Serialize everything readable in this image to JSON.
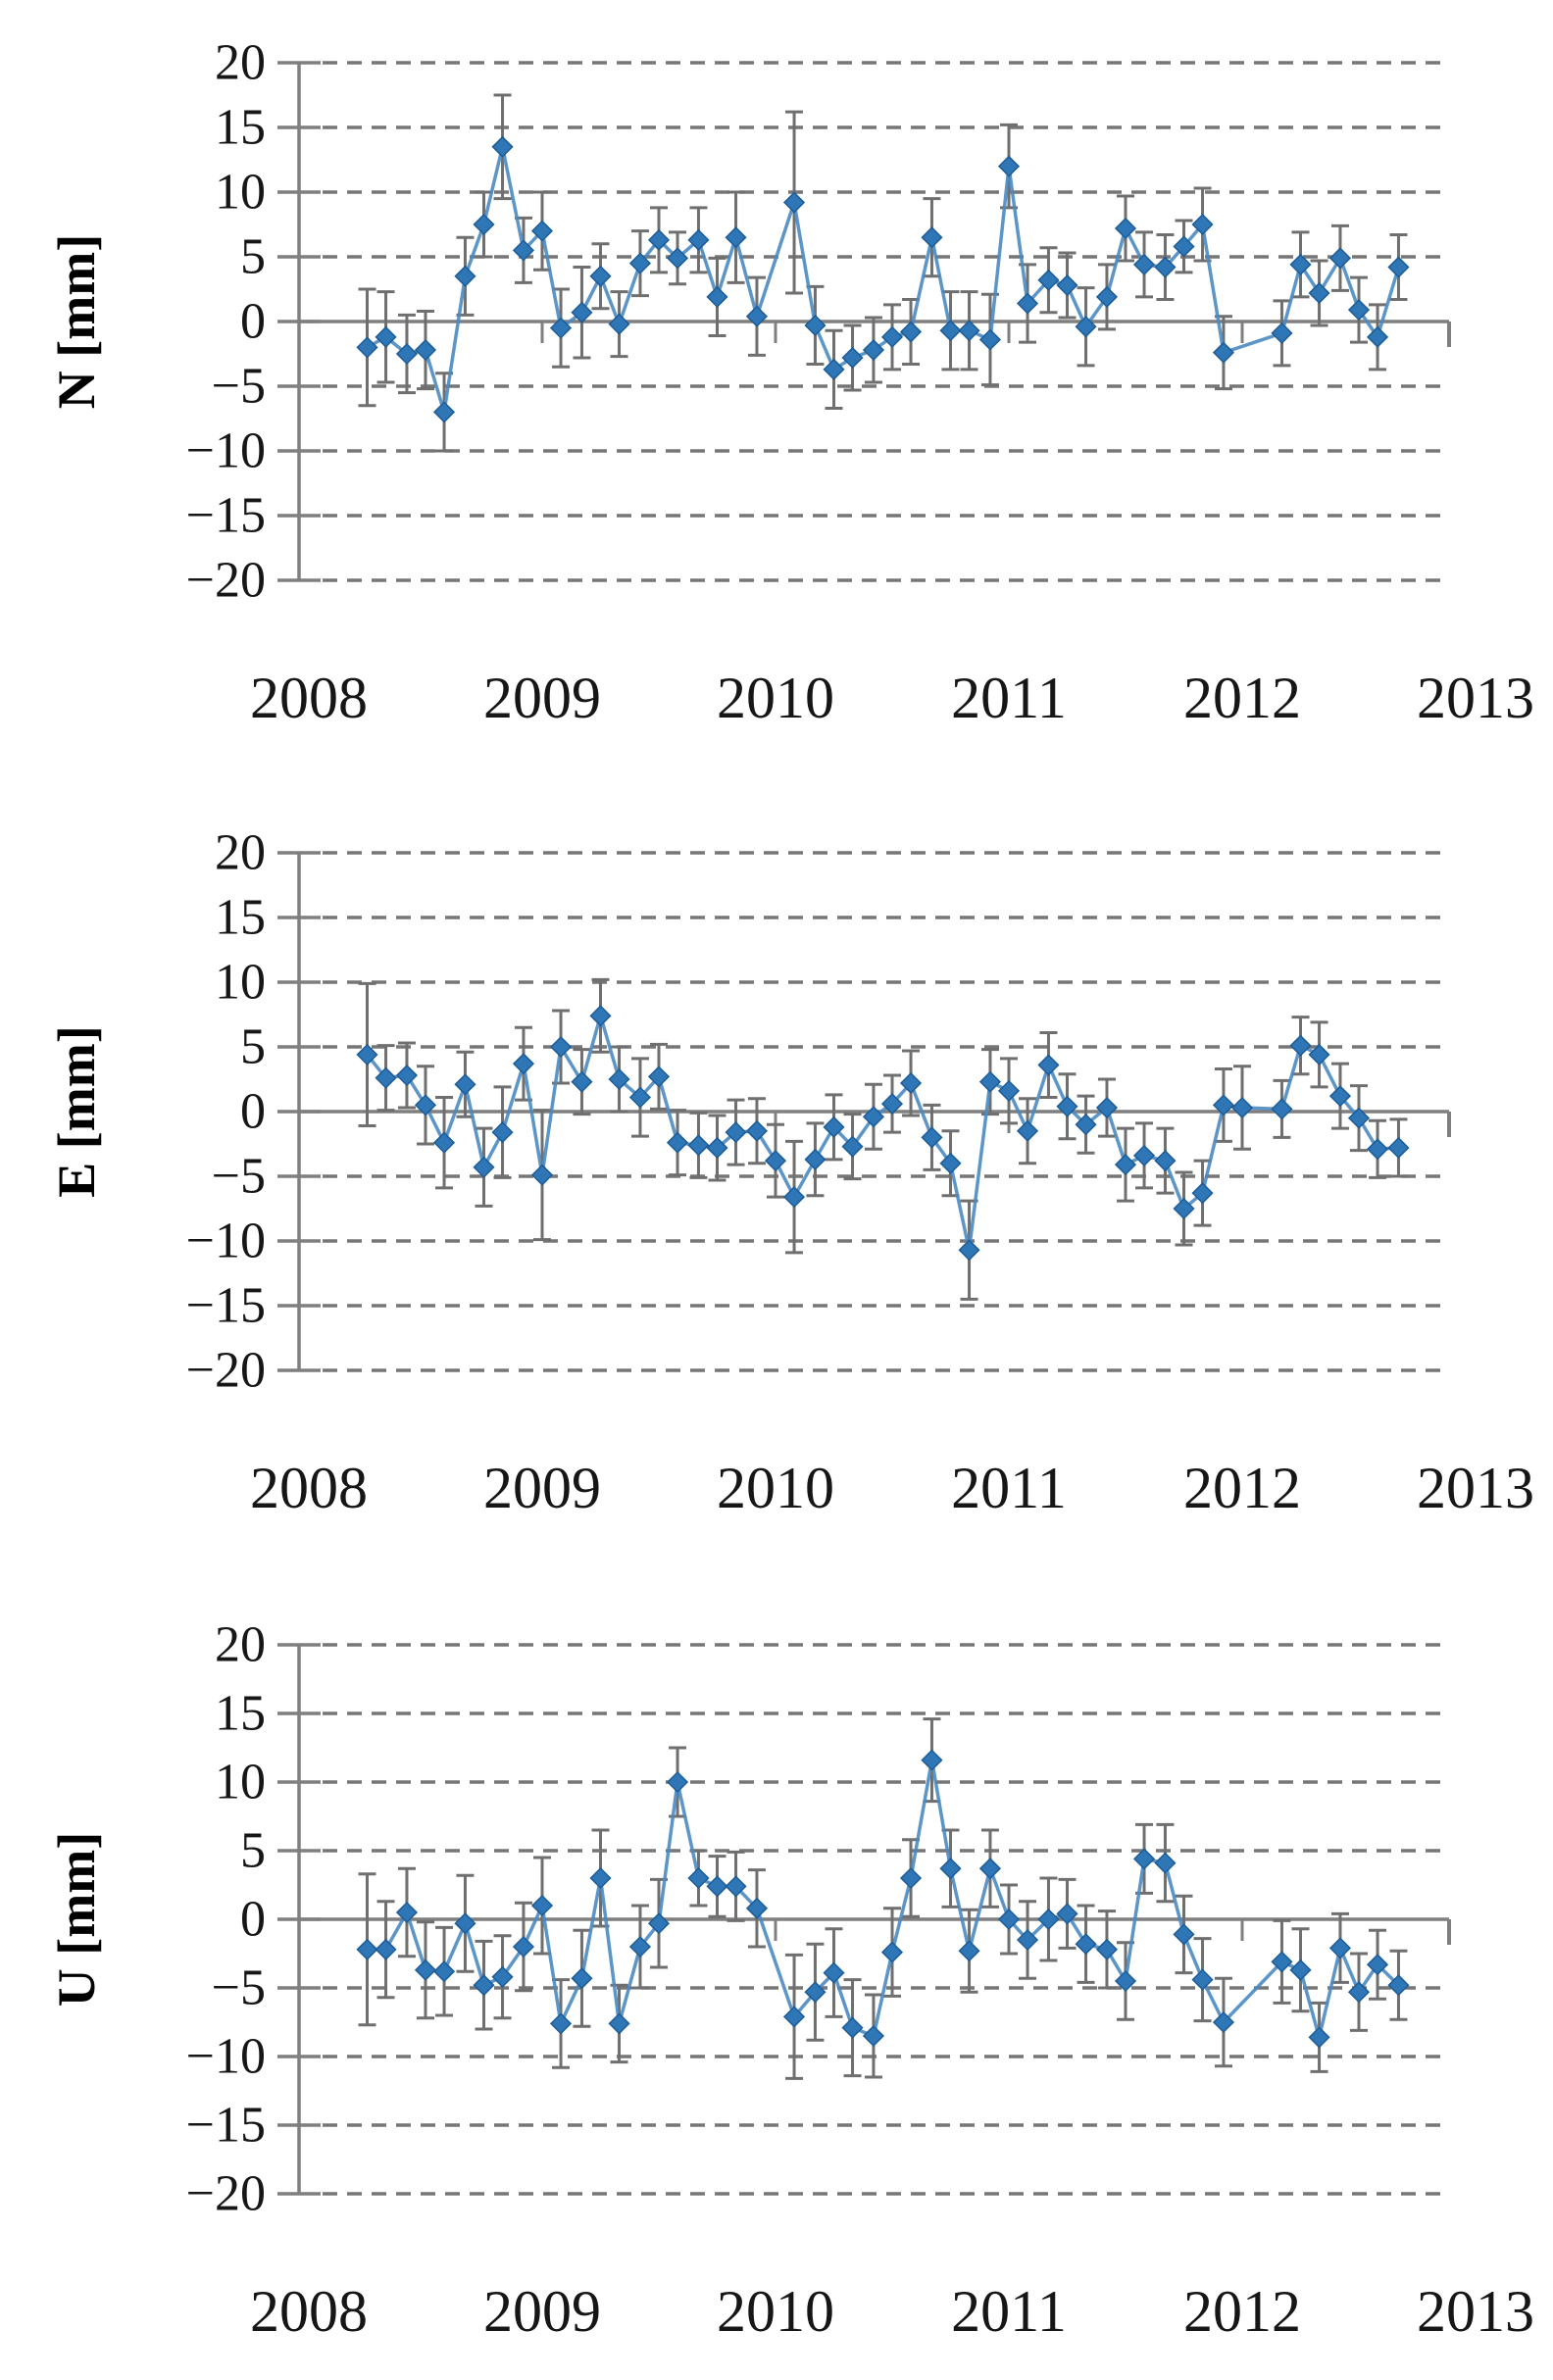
{
  "page": {
    "background": "#ffffff",
    "marker_color": "#2e76b6",
    "marker_edge_color": "#1d5c96",
    "line_color": "#4a8ac2",
    "errorbar_color": "#6f6f6f",
    "grid_color": "#767676",
    "zero_line_color": "#7f7f7f",
    "axis_color": "#7f7f7f",
    "tick_label_color": "#161616",
    "axis_title_color": "#000000"
  },
  "chart_data": [
    {
      "type": "line",
      "id": "n",
      "title": "",
      "xlabel": "",
      "ylabel": "N [mm]",
      "xlim": [
        2008,
        2013
      ],
      "ylim": [
        -20,
        20
      ],
      "x_ticks": [
        2008,
        2009,
        2010,
        2011,
        2012,
        2013
      ],
      "y_ticks": [
        20,
        15,
        10,
        5,
        0,
        -5,
        -10,
        -15,
        -20
      ],
      "grid": "horizontal-dashed",
      "legend": "none",
      "marker": "diamond",
      "error_bars": true,
      "x": [
        2008.25,
        2008.33,
        2008.42,
        2008.5,
        2008.58,
        2008.67,
        2008.75,
        2008.83,
        2008.92,
        2009.0,
        2009.08,
        2009.17,
        2009.25,
        2009.33,
        2009.42,
        2009.5,
        2009.58,
        2009.67,
        2009.75,
        2009.83,
        2009.92,
        2010.08,
        2010.17,
        2010.25,
        2010.33,
        2010.42,
        2010.5,
        2010.58,
        2010.67,
        2010.75,
        2010.83,
        2010.92,
        2011.0,
        2011.08,
        2011.17,
        2011.25,
        2011.33,
        2011.42,
        2011.5,
        2011.58,
        2011.67,
        2011.75,
        2011.83,
        2011.92,
        2012.17,
        2012.25,
        2012.33,
        2012.42,
        2012.5,
        2012.58,
        2012.67
      ],
      "values": [
        -2.0,
        -1.2,
        -2.5,
        -2.2,
        -7.0,
        3.5,
        7.5,
        13.5,
        5.5,
        7.0,
        -0.5,
        0.7,
        3.5,
        -0.2,
        4.5,
        6.3,
        4.9,
        6.3,
        1.9,
        6.5,
        0.4,
        9.2,
        -0.3,
        -3.7,
        -2.8,
        -2.2,
        -1.2,
        -0.8,
        6.5,
        -0.7,
        -0.7,
        -1.4,
        12.0,
        1.4,
        3.2,
        2.8,
        -0.4,
        1.9,
        7.2,
        4.4,
        4.2,
        5.8,
        7.5,
        -2.4,
        -0.9,
        4.4,
        2.2,
        4.9,
        0.9,
        -1.2,
        4.2
      ],
      "errors": [
        4.5,
        3.5,
        3.0,
        3.0,
        3.0,
        3.0,
        2.5,
        4.0,
        2.5,
        3.0,
        3.0,
        3.5,
        2.5,
        2.5,
        2.5,
        2.5,
        2.0,
        2.5,
        3.0,
        3.5,
        3.0,
        7.0,
        3.0,
        3.0,
        2.5,
        2.5,
        2.5,
        2.5,
        3.0,
        3.0,
        3.0,
        3.5,
        3.2,
        3.0,
        2.5,
        2.5,
        3.0,
        2.5,
        2.5,
        2.5,
        2.5,
        2.0,
        2.8,
        2.8,
        2.5,
        2.5,
        2.5,
        2.5,
        2.5,
        2.5,
        2.5
      ]
    },
    {
      "type": "line",
      "id": "e",
      "title": "",
      "xlabel": "",
      "ylabel": "E [mm]",
      "xlim": [
        2008,
        2013
      ],
      "ylim": [
        -20,
        20
      ],
      "x_ticks": [
        2008,
        2009,
        2010,
        2011,
        2012,
        2013
      ],
      "y_ticks": [
        20,
        15,
        10,
        5,
        0,
        -5,
        -10,
        -15,
        -20
      ],
      "grid": "horizontal-dashed",
      "legend": "none",
      "marker": "diamond",
      "error_bars": true,
      "x": [
        2008.25,
        2008.33,
        2008.42,
        2008.5,
        2008.58,
        2008.67,
        2008.75,
        2008.83,
        2008.92,
        2009.0,
        2009.08,
        2009.17,
        2009.25,
        2009.33,
        2009.42,
        2009.5,
        2009.58,
        2009.67,
        2009.75,
        2009.83,
        2009.92,
        2010.0,
        2010.08,
        2010.17,
        2010.25,
        2010.33,
        2010.42,
        2010.5,
        2010.58,
        2010.67,
        2010.75,
        2010.83,
        2010.92,
        2011.0,
        2011.08,
        2011.17,
        2011.25,
        2011.33,
        2011.42,
        2011.5,
        2011.58,
        2011.67,
        2011.75,
        2011.83,
        2011.92,
        2012.0,
        2012.17,
        2012.25,
        2012.33,
        2012.42,
        2012.5,
        2012.58,
        2012.67
      ],
      "values": [
        4.4,
        2.6,
        2.8,
        0.5,
        -2.4,
        2.1,
        -4.3,
        -1.6,
        3.7,
        -4.9,
        5.0,
        2.3,
        7.4,
        2.5,
        1.1,
        2.7,
        -2.4,
        -2.6,
        -2.8,
        -1.6,
        -1.5,
        -3.8,
        -6.6,
        -3.7,
        -1.2,
        -2.7,
        -0.4,
        0.6,
        2.2,
        -2.0,
        -4.0,
        -10.7,
        2.3,
        1.6,
        -1.5,
        3.6,
        0.4,
        -1.0,
        0.3,
        -4.1,
        -3.4,
        -3.8,
        -7.5,
        -6.3,
        0.5,
        0.3,
        0.2,
        5.1,
        4.4,
        1.2,
        -0.5,
        -2.9,
        -2.8
      ],
      "errors": [
        5.5,
        2.5,
        2.5,
        3.0,
        3.5,
        2.5,
        3.0,
        3.5,
        2.8,
        5.0,
        2.8,
        2.5,
        2.8,
        2.5,
        3.0,
        2.5,
        2.5,
        2.5,
        2.5,
        2.5,
        2.5,
        2.8,
        4.3,
        2.8,
        2.5,
        2.5,
        2.5,
        2.2,
        2.5,
        2.5,
        2.5,
        3.8,
        2.5,
        2.5,
        2.5,
        2.5,
        2.5,
        2.2,
        2.2,
        2.8,
        2.5,
        2.5,
        2.8,
        2.5,
        2.8,
        3.2,
        2.2,
        2.2,
        2.5,
        2.5,
        2.5,
        2.2,
        2.2
      ]
    },
    {
      "type": "line",
      "id": "u",
      "title": "",
      "xlabel": "",
      "ylabel": "U [mm]",
      "xlim": [
        2008,
        2013
      ],
      "ylim": [
        -20,
        20
      ],
      "x_ticks": [
        2008,
        2009,
        2010,
        2011,
        2012,
        2013
      ],
      "y_ticks": [
        20,
        15,
        10,
        5,
        0,
        -5,
        -10,
        -15,
        -20
      ],
      "grid": "horizontal-dashed",
      "legend": "none",
      "marker": "diamond",
      "error_bars": true,
      "x": [
        2008.25,
        2008.33,
        2008.42,
        2008.5,
        2008.58,
        2008.67,
        2008.75,
        2008.83,
        2008.92,
        2009.0,
        2009.08,
        2009.17,
        2009.25,
        2009.33,
        2009.42,
        2009.5,
        2009.58,
        2009.67,
        2009.75,
        2009.83,
        2009.92,
        2010.08,
        2010.17,
        2010.25,
        2010.33,
        2010.42,
        2010.5,
        2010.58,
        2010.67,
        2010.75,
        2010.83,
        2010.92,
        2011.0,
        2011.08,
        2011.17,
        2011.25,
        2011.33,
        2011.42,
        2011.5,
        2011.58,
        2011.67,
        2011.75,
        2011.83,
        2011.92,
        2012.17,
        2012.25,
        2012.33,
        2012.42,
        2012.5,
        2012.58,
        2012.67
      ],
      "values": [
        -2.2,
        -2.2,
        0.5,
        -3.7,
        -3.8,
        -0.3,
        -4.8,
        -4.2,
        -2.0,
        1.0,
        -7.6,
        -4.3,
        3.0,
        -7.6,
        -2.0,
        -0.3,
        10.0,
        3.0,
        2.4,
        2.4,
        0.8,
        -7.1,
        -5.3,
        -3.9,
        -7.9,
        -8.5,
        -2.4,
        3.0,
        11.6,
        3.7,
        -2.3,
        3.7,
        0.0,
        -1.5,
        0.0,
        0.4,
        -1.8,
        -2.2,
        -4.5,
        4.4,
        4.1,
        -1.1,
        -4.4,
        -7.5,
        -3.1,
        -3.7,
        -8.6,
        -2.1,
        -5.3,
        -3.3,
        -4.8
      ],
      "errors": [
        5.5,
        3.5,
        3.2,
        3.5,
        3.2,
        3.5,
        3.2,
        3.0,
        3.2,
        3.5,
        3.2,
        3.5,
        3.5,
        2.8,
        3.0,
        3.2,
        2.5,
        2.0,
        2.2,
        2.5,
        2.8,
        4.5,
        3.5,
        3.2,
        3.5,
        3.0,
        3.2,
        2.8,
        3.0,
        2.8,
        3.0,
        2.8,
        2.5,
        2.8,
        3.0,
        2.5,
        2.8,
        2.8,
        2.8,
        2.5,
        2.8,
        2.8,
        3.0,
        3.2,
        3.0,
        3.0,
        2.5,
        2.5,
        2.8,
        2.5,
        2.5
      ]
    }
  ]
}
